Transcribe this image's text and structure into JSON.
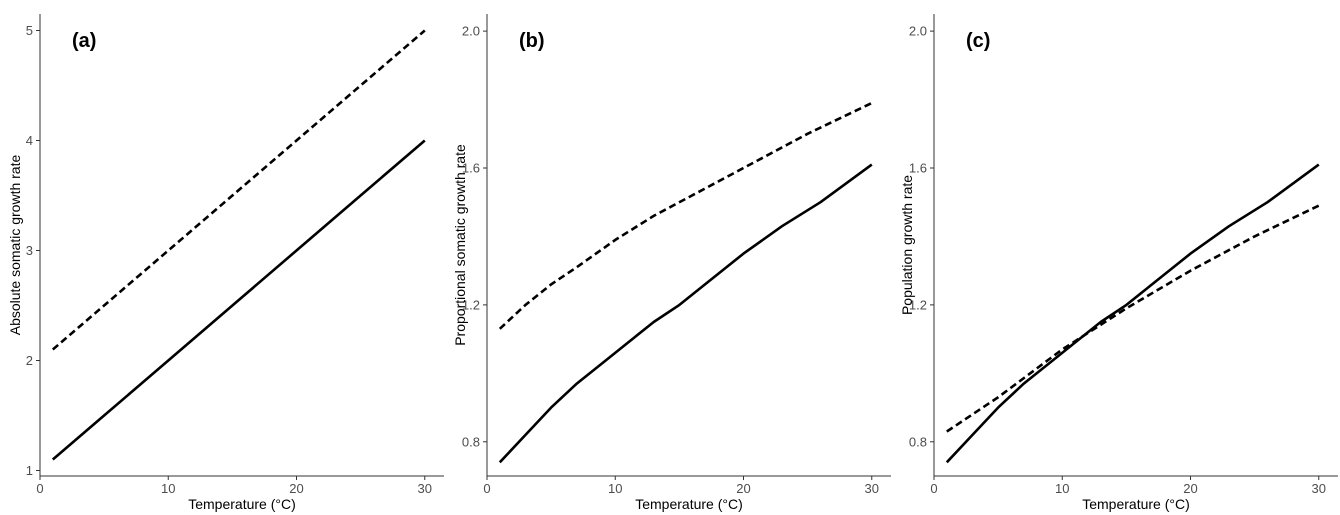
{
  "chart_data": [
    {
      "type": "line",
      "panel_label": "(a)",
      "xlabel": "Temperature (°C)",
      "ylabel": "Absolute somatic growth rate",
      "xlim": [
        0,
        31.5
      ],
      "ylim": [
        0.95,
        5.15
      ],
      "xticks": [
        "0",
        "10",
        "20",
        "30"
      ],
      "yticks": [
        "1",
        "2",
        "3",
        "4",
        "5"
      ],
      "grid": false,
      "series": [
        {
          "style": "solid",
          "x": [
            1,
            5,
            10,
            15,
            20,
            25,
            30
          ],
          "y": [
            1.1,
            1.5,
            2.0,
            2.5,
            3.0,
            3.5,
            4.0
          ]
        },
        {
          "style": "dashed",
          "x": [
            1,
            5,
            10,
            15,
            20,
            25,
            30
          ],
          "y": [
            2.1,
            2.5,
            3.0,
            3.5,
            4.0,
            4.5,
            5.0
          ]
        }
      ]
    },
    {
      "type": "line",
      "panel_label": "(b)",
      "xlabel": "Temperature (°C)",
      "ylabel": "Proportional somatic growth rate",
      "xlim": [
        0,
        31.5
      ],
      "ylim": [
        0.7,
        2.05
      ],
      "xticks": [
        "0",
        "10",
        "20",
        "30"
      ],
      "yticks": [
        "0.8",
        "1.2",
        "1.6",
        "2.0"
      ],
      "grid": false,
      "series": [
        {
          "style": "solid",
          "x": [
            1,
            3,
            5,
            7,
            9,
            11,
            13,
            15,
            17,
            20,
            23,
            26,
            30
          ],
          "y": [
            0.74,
            0.82,
            0.9,
            0.97,
            1.03,
            1.09,
            1.15,
            1.2,
            1.26,
            1.35,
            1.43,
            1.5,
            1.61
          ]
        },
        {
          "style": "dashed",
          "x": [
            1,
            3,
            5,
            7,
            10,
            13,
            16,
            20,
            25,
            30
          ],
          "y": [
            1.13,
            1.2,
            1.26,
            1.31,
            1.39,
            1.46,
            1.52,
            1.6,
            1.7,
            1.79
          ]
        }
      ]
    },
    {
      "type": "line",
      "panel_label": "(c)",
      "xlabel": "Temperature (°C)",
      "ylabel": "Population growth rate",
      "xlim": [
        0,
        31.5
      ],
      "ylim": [
        0.7,
        2.05
      ],
      "xticks": [
        "0",
        "10",
        "20",
        "30"
      ],
      "yticks": [
        "0.8",
        "1.2",
        "1.6",
        "2.0"
      ],
      "grid": false,
      "series": [
        {
          "style": "solid",
          "x": [
            1,
            3,
            5,
            7,
            9,
            11,
            13,
            15,
            17,
            20,
            23,
            26,
            30
          ],
          "y": [
            0.74,
            0.82,
            0.9,
            0.97,
            1.03,
            1.09,
            1.15,
            1.2,
            1.26,
            1.35,
            1.43,
            1.5,
            1.61
          ]
        },
        {
          "style": "dashed",
          "x": [
            1,
            5,
            10,
            15,
            20,
            25,
            30
          ],
          "y": [
            0.83,
            0.93,
            1.07,
            1.19,
            1.3,
            1.4,
            1.49
          ]
        }
      ]
    }
  ]
}
